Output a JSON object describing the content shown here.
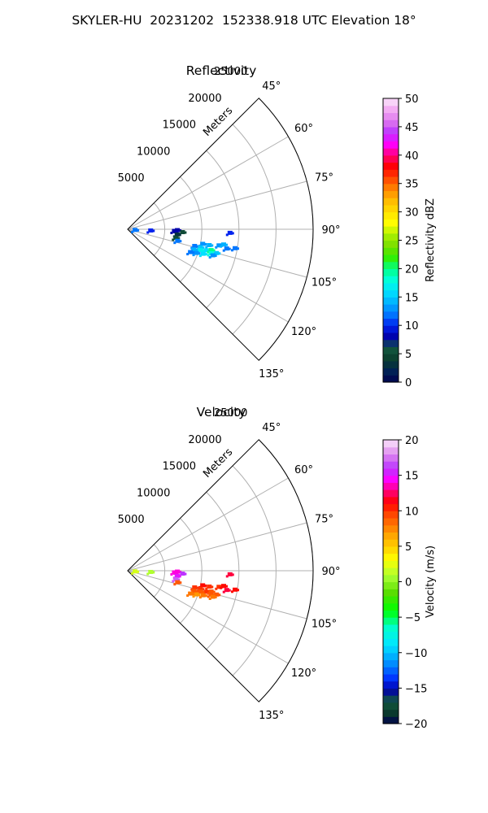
{
  "figure": {
    "title": "SKYLER-HU  20231202  152338.918 UTC Elevation 18°"
  },
  "chart_data": [
    {
      "type": "polar-sector",
      "title": "Reflectivity",
      "radial_label": "Meters",
      "radial_ticks": [
        5000,
        10000,
        15000,
        20000,
        25000
      ],
      "radial_tick_labels": [
        "5000",
        "10000",
        "15000",
        "20000",
        "25000"
      ],
      "rmax": 25000,
      "angle_ticks": [
        45,
        60,
        75,
        90,
        105,
        120,
        135
      ],
      "angle_tick_labels": [
        "45°",
        "60°",
        "75°",
        "90°",
        "105°",
        "120°",
        "135°"
      ],
      "angle_range": [
        45,
        135
      ],
      "grid": true,
      "colorbar": {
        "label": "Reflectivity dBZ",
        "range": [
          0,
          50
        ],
        "ticks": [
          0,
          5,
          10,
          15,
          20,
          25,
          30,
          35,
          40,
          45,
          50
        ],
        "tick_labels": [
          "0",
          "5",
          "10",
          "15",
          "20",
          "25",
          "30",
          "35",
          "40",
          "45",
          "50"
        ]
      },
      "echoes": [
        {
          "az": 95,
          "r": 1000,
          "value": 12
        },
        {
          "az": 93,
          "r": 3100,
          "value": 10
        },
        {
          "az": 92,
          "r": 6300,
          "value": 8
        },
        {
          "az": 91,
          "r": 6700,
          "value": 8
        },
        {
          "az": 93,
          "r": 7400,
          "value": 5
        },
        {
          "az": 96,
          "r": 6700,
          "value": 3
        },
        {
          "az": 100,
          "r": 6600,
          "value": 5
        },
        {
          "az": 92,
          "r": 13800,
          "value": 10
        },
        {
          "az": 103,
          "r": 6900,
          "value": 12
        },
        {
          "az": 104,
          "r": 9300,
          "value": 12
        },
        {
          "az": 101,
          "r": 10300,
          "value": 13
        },
        {
          "az": 100,
          "r": 12500,
          "value": 13
        },
        {
          "az": 101,
          "r": 11200,
          "value": 14
        },
        {
          "az": 104,
          "r": 10100,
          "value": 15
        },
        {
          "az": 105,
          "r": 11000,
          "value": 16
        },
        {
          "az": 106,
          "r": 10200,
          "value": 17
        },
        {
          "az": 107,
          "r": 9300,
          "value": 14
        },
        {
          "az": 104,
          "r": 11600,
          "value": 20
        },
        {
          "az": 106,
          "r": 11700,
          "value": 18
        },
        {
          "az": 108,
          "r": 10700,
          "value": 16
        },
        {
          "az": 109,
          "r": 9800,
          "value": 13
        },
        {
          "az": 99,
          "r": 13100,
          "value": 14
        },
        {
          "az": 101,
          "r": 13600,
          "value": 12
        },
        {
          "az": 100,
          "r": 14700,
          "value": 12
        },
        {
          "az": 105,
          "r": 12400,
          "value": 15
        },
        {
          "az": 107,
          "r": 12000,
          "value": 13
        },
        {
          "az": 110,
          "r": 9000,
          "value": 12
        }
      ]
    },
    {
      "type": "polar-sector",
      "title": "Velocity",
      "radial_label": "Meters",
      "radial_ticks": [
        5000,
        10000,
        15000,
        20000,
        25000
      ],
      "radial_tick_labels": [
        "5000",
        "10000",
        "15000",
        "20000",
        "25000"
      ],
      "rmax": 25000,
      "angle_ticks": [
        45,
        60,
        75,
        90,
        105,
        120,
        135
      ],
      "angle_tick_labels": [
        "45°",
        "60°",
        "75°",
        "90°",
        "105°",
        "120°",
        "135°"
      ],
      "angle_range": [
        45,
        135
      ],
      "grid": true,
      "colorbar": {
        "label": "Velocity (m/s)",
        "range": [
          -20,
          20
        ],
        "ticks": [
          -20,
          -15,
          -10,
          -5,
          0,
          5,
          10,
          15,
          20
        ],
        "tick_labels": [
          "−20",
          "−15",
          "−10",
          "−5",
          "0",
          "5",
          "10",
          "15",
          "20"
        ]
      },
      "echoes": [
        {
          "az": 95,
          "r": 1000,
          "value": 2
        },
        {
          "az": 93,
          "r": 3100,
          "value": 1
        },
        {
          "az": 92,
          "r": 6300,
          "value": 14
        },
        {
          "az": 91,
          "r": 6700,
          "value": 14
        },
        {
          "az": 93,
          "r": 7400,
          "value": 16
        },
        {
          "az": 96,
          "r": 6700,
          "value": 15
        },
        {
          "az": 100,
          "r": 6600,
          "value": 17
        },
        {
          "az": 92,
          "r": 13800,
          "value": 12
        },
        {
          "az": 103,
          "r": 6900,
          "value": 9
        },
        {
          "az": 104,
          "r": 9300,
          "value": 10
        },
        {
          "az": 101,
          "r": 10300,
          "value": 11
        },
        {
          "az": 100,
          "r": 12500,
          "value": 10
        },
        {
          "az": 101,
          "r": 11200,
          "value": 10
        },
        {
          "az": 104,
          "r": 10100,
          "value": 10
        },
        {
          "az": 105,
          "r": 11000,
          "value": 10
        },
        {
          "az": 106,
          "r": 10200,
          "value": 9
        },
        {
          "az": 107,
          "r": 9300,
          "value": 9
        },
        {
          "az": 104,
          "r": 11600,
          "value": 9
        },
        {
          "az": 106,
          "r": 11700,
          "value": 9
        },
        {
          "az": 108,
          "r": 10700,
          "value": 8
        },
        {
          "az": 109,
          "r": 9800,
          "value": 7
        },
        {
          "az": 99,
          "r": 13100,
          "value": 11
        },
        {
          "az": 101,
          "r": 13600,
          "value": 12
        },
        {
          "az": 100,
          "r": 14700,
          "value": 11
        },
        {
          "az": 105,
          "r": 12400,
          "value": 9
        },
        {
          "az": 107,
          "r": 12000,
          "value": 8
        },
        {
          "az": 110,
          "r": 9000,
          "value": 8
        }
      ]
    }
  ]
}
